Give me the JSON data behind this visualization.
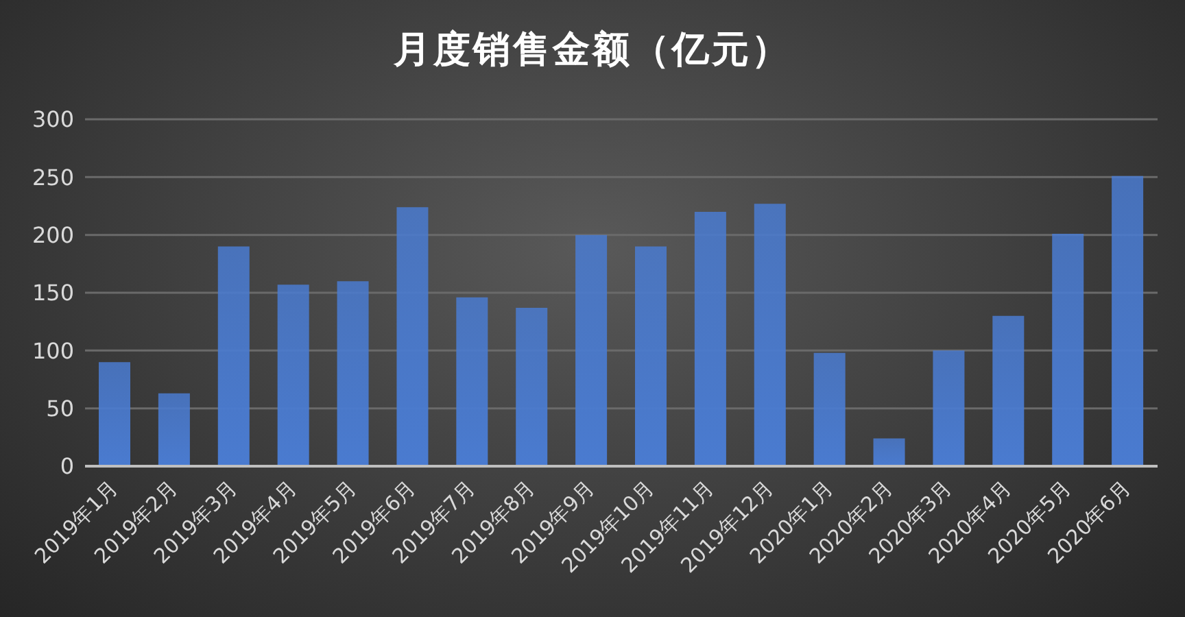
{
  "chart_data": {
    "type": "bar",
    "title": "月度销售金额（亿元）",
    "categories": [
      "2019年1月",
      "2019年2月",
      "2019年3月",
      "2019年4月",
      "2019年5月",
      "2019年6月",
      "2019年7月",
      "2019年8月",
      "2019年9月",
      "2019年10月",
      "2019年11月",
      "2019年12月",
      "2020年1月",
      "2020年2月",
      "2020年3月",
      "2020年4月",
      "2020年5月",
      "2020年6月"
    ],
    "values": [
      90,
      63,
      190,
      157,
      160,
      224,
      146,
      137,
      200,
      190,
      220,
      227,
      98,
      24,
      100,
      130,
      201,
      251
    ],
    "color": "#4a7bd0",
    "ylim": [
      0,
      300
    ],
    "yticks": [
      0,
      50,
      100,
      150,
      200,
      250,
      300
    ],
    "grid": "y",
    "legend": false
  }
}
